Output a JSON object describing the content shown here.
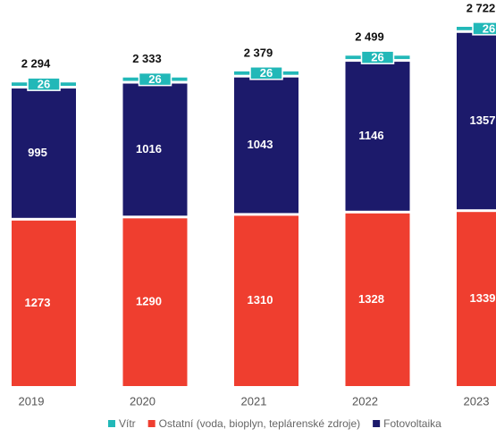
{
  "chart_data": {
    "type": "stacked_bar",
    "categories": [
      "2019",
      "2020",
      "2021",
      "2022",
      "2023"
    ],
    "series": [
      {
        "name": "Ostatní (voda, bioplyn, teplárenské zdroje)",
        "color": "#ef3e2f",
        "values": [
          1273,
          1290,
          1310,
          1328,
          1339
        ]
      },
      {
        "name": "Fotovoltaika",
        "color": "#1c1a6b",
        "values": [
          995,
          1016,
          1043,
          1146,
          1357
        ]
      },
      {
        "name": "Vítr",
        "color": "#22b8b8",
        "values": [
          26,
          26,
          26,
          26,
          26
        ]
      }
    ],
    "total_labels": [
      "2 294",
      "2 333",
      "2 379",
      "2 499",
      "2 722"
    ],
    "legend_order": [
      2,
      0,
      1
    ]
  }
}
